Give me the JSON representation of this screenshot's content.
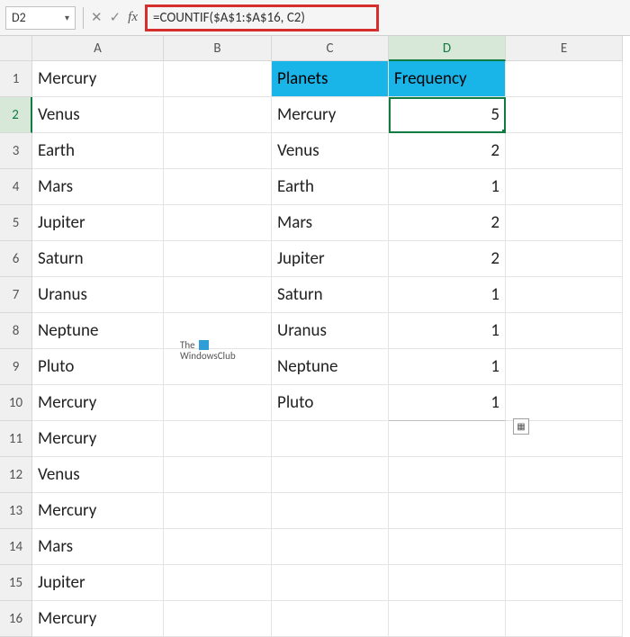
{
  "nameBox": "D2",
  "formula": "=COUNTIF($A$1:$A$16, C2)",
  "columns": [
    "A",
    "B",
    "C",
    "D",
    "E"
  ],
  "colA": [
    "Mercury",
    "Venus",
    "Earth",
    "Mars",
    "Jupiter",
    "Saturn",
    "Uranus",
    "Neptune",
    "Pluto",
    "Mercury",
    "Mercury",
    "Venus",
    "Mercury",
    "Mars",
    "Jupiter",
    "Mercury"
  ],
  "headerC": "Planets",
  "headerD": "Frequency",
  "colC": [
    "Mercury",
    "Venus",
    "Earth",
    "Mars",
    "Jupiter",
    "Saturn",
    "Uranus",
    "Neptune",
    "Pluto"
  ],
  "colD": [
    "5",
    "2",
    "1",
    "2",
    "2",
    "1",
    "1",
    "1",
    "1"
  ],
  "watermark_line1": "The",
  "watermark_line2": "WindowsClub",
  "colors": {
    "highlight_border": "#d62d2d",
    "header_fill": "#1ab5e8",
    "excel_green": "#107c41",
    "grid": "#e4e4e4"
  }
}
